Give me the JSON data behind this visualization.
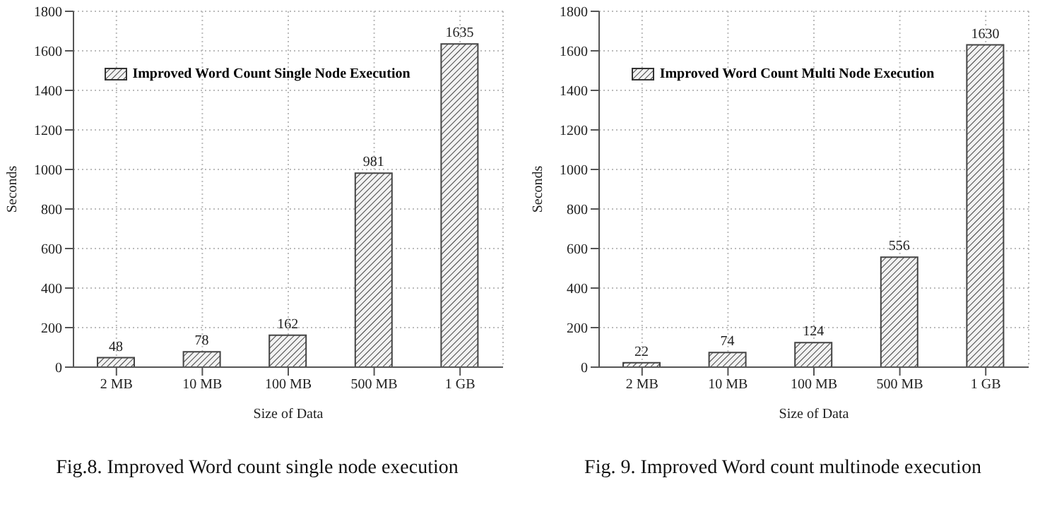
{
  "chart_data": [
    {
      "type": "bar",
      "title": "Fig.8. Improved Word count single node execution",
      "xlabel": "Size of Data",
      "ylabel": "Seconds",
      "categories": [
        "2 MB",
        "10 MB",
        "100 MB",
        "500 MB",
        "1 GB"
      ],
      "series": [
        {
          "name": "Improved Word Count Single Node Execution",
          "color": "#444444",
          "values": [
            48,
            78,
            162,
            981,
            1635
          ]
        }
      ],
      "ylim": [
        0,
        1800
      ],
      "yticks": [
        0,
        200,
        400,
        600,
        800,
        1000,
        1200,
        1400,
        1600,
        1800
      ],
      "grid": true,
      "legend": "top",
      "data_labels": true
    },
    {
      "type": "bar",
      "title": "Fig. 9. Improved Word count multinode execution",
      "xlabel": "Size of Data",
      "ylabel": "Seconds",
      "categories": [
        "2 MB",
        "10 MB",
        "100 MB",
        "500 MB",
        "1 GB"
      ],
      "series": [
        {
          "name": "Improved Word Count Multi Node Execution",
          "color": "#444444",
          "values": [
            22,
            74,
            124,
            556,
            1630
          ]
        }
      ],
      "ylim": [
        0,
        1800
      ],
      "yticks": [
        0,
        200,
        400,
        600,
        800,
        1000,
        1200,
        1400,
        1600,
        1800
      ],
      "grid": true,
      "legend": "top",
      "data_labels": true
    }
  ]
}
